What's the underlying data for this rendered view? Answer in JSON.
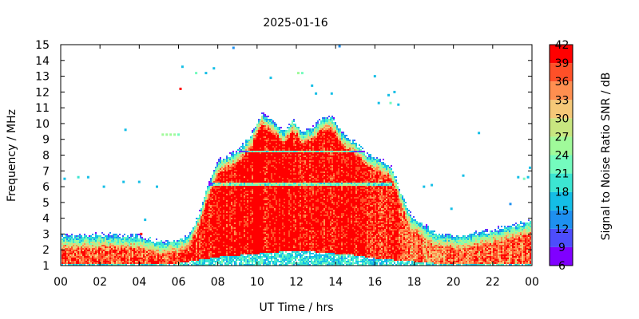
{
  "chart_data": {
    "type": "heatmap",
    "title": "2025-01-16",
    "xlabel": "UT Time / hrs",
    "ylabel": "Frequency / MHz",
    "xlim": [
      0,
      24
    ],
    "ylim": [
      1,
      15
    ],
    "x_tick_labels": [
      "00",
      "02",
      "04",
      "06",
      "08",
      "10",
      "12",
      "14",
      "16",
      "18",
      "20",
      "22",
      "00"
    ],
    "y_tick_labels": [
      "1",
      "2",
      "3",
      "4",
      "5",
      "6",
      "7",
      "8",
      "9",
      "10",
      "11",
      "12",
      "13",
      "14",
      "15"
    ],
    "colorbar": {
      "label": "Signal to Noise Ratio SNR / dB",
      "tick_labels": [
        "6",
        "9",
        "12",
        "15",
        "18",
        "21",
        "24",
        "27",
        "30",
        "33",
        "36",
        "39",
        "42"
      ],
      "range": [
        6,
        42
      ],
      "levels": [
        {
          "from": 6,
          "to": 9,
          "color": "#8000ff"
        },
        {
          "from": 9,
          "to": 12,
          "color": "#4d4dfc"
        },
        {
          "from": 12,
          "to": 15,
          "color": "#1e90f0"
        },
        {
          "from": 15,
          "to": 18,
          "color": "#14bee6"
        },
        {
          "from": 18,
          "to": 21,
          "color": "#3ce6d2"
        },
        {
          "from": 21,
          "to": 24,
          "color": "#74fbbe"
        },
        {
          "from": 24,
          "to": 27,
          "color": "#a0fa9a"
        },
        {
          "from": 27,
          "to": 30,
          "color": "#c8e680"
        },
        {
          "from": 30,
          "to": 33,
          "color": "#f5c878"
        },
        {
          "from": 33,
          "to": 36,
          "color": "#ff8f50"
        },
        {
          "from": 36,
          "to": 39,
          "color": "#ff5028"
        },
        {
          "from": 39,
          "to": 42,
          "color": "#ff0000"
        }
      ]
    },
    "upper_edge_mhz": {
      "hours": [
        0,
        2,
        4,
        5,
        6,
        6.5,
        7,
        7.5,
        8,
        9,
        9.7,
        10.2,
        10.8,
        11.3,
        11.8,
        12.3,
        12.8,
        13.3,
        13.8,
        14.3,
        15,
        15.6,
        16.2,
        16.8,
        17.3,
        17.8,
        18.5,
        19,
        20,
        22,
        24
      ],
      "values": [
        2.9,
        3.0,
        2.9,
        2.6,
        2.7,
        3.0,
        4.3,
        6.3,
        7.7,
        8.3,
        9.4,
        10.7,
        10.2,
        9.5,
        10.3,
        9.5,
        9.8,
        10.4,
        10.5,
        9.4,
        8.8,
        8.1,
        7.8,
        7.3,
        5.7,
        4.2,
        3.6,
        3.2,
        2.9,
        3.3,
        3.9
      ]
    },
    "lower_edge_mhz": {
      "hours": [
        0,
        6,
        7,
        8,
        9,
        10,
        11,
        12,
        13,
        14,
        15,
        16,
        17,
        18,
        19,
        24
      ],
      "values": [
        1.2,
        1.2,
        1.4,
        1.6,
        1.7,
        1.8,
        1.9,
        2.0,
        1.9,
        1.8,
        1.7,
        1.5,
        1.4,
        1.3,
        1.2,
        1.2
      ]
    },
    "peak_snr_db": {
      "hours": [
        0,
        5.5,
        7.5,
        9,
        12,
        15,
        17,
        18,
        24
      ],
      "values": [
        38,
        37,
        41,
        42,
        42,
        41,
        39,
        36,
        37
      ]
    },
    "isolated_points": [
      {
        "hour": 0.2,
        "mhz": 6.5,
        "snr": 15
      },
      {
        "hour": 0.9,
        "mhz": 6.6,
        "snr": 18
      },
      {
        "hour": 1.4,
        "mhz": 6.6,
        "snr": 15
      },
      {
        "hour": 2.2,
        "mhz": 6.0,
        "snr": 15
      },
      {
        "hour": 3.3,
        "mhz": 9.6,
        "snr": 15
      },
      {
        "hour": 3.2,
        "mhz": 6.3,
        "snr": 15
      },
      {
        "hour": 4.0,
        "mhz": 6.3,
        "snr": 15
      },
      {
        "hour": 4.3,
        "mhz": 3.9,
        "snr": 15
      },
      {
        "hour": 4.1,
        "mhz": 3.0,
        "snr": 39
      },
      {
        "hour": 4.9,
        "mhz": 6.0,
        "snr": 15
      },
      {
        "hour": 5.2,
        "mhz": 9.3,
        "snr": 24
      },
      {
        "hour": 5.4,
        "mhz": 9.3,
        "snr": 24
      },
      {
        "hour": 5.6,
        "mhz": 9.3,
        "snr": 24
      },
      {
        "hour": 5.8,
        "mhz": 9.3,
        "snr": 24
      },
      {
        "hour": 6.0,
        "mhz": 9.3,
        "snr": 21
      },
      {
        "hour": 6.1,
        "mhz": 12.2,
        "snr": 39
      },
      {
        "hour": 6.2,
        "mhz": 13.6,
        "snr": 15
      },
      {
        "hour": 6.9,
        "mhz": 13.2,
        "snr": 21
      },
      {
        "hour": 7.4,
        "mhz": 13.2,
        "snr": 15
      },
      {
        "hour": 7.8,
        "mhz": 13.5,
        "snr": 15
      },
      {
        "hour": 8.8,
        "mhz": 14.8,
        "snr": 12
      },
      {
        "hour": 10.7,
        "mhz": 12.9,
        "snr": 15
      },
      {
        "hour": 12.1,
        "mhz": 13.2,
        "snr": 24
      },
      {
        "hour": 12.3,
        "mhz": 13.2,
        "snr": 21
      },
      {
        "hour": 12.8,
        "mhz": 12.4,
        "snr": 15
      },
      {
        "hour": 13.0,
        "mhz": 11.9,
        "snr": 15
      },
      {
        "hour": 13.8,
        "mhz": 11.9,
        "snr": 15
      },
      {
        "hour": 14.2,
        "mhz": 14.9,
        "snr": 12
      },
      {
        "hour": 16.0,
        "mhz": 13.0,
        "snr": 15
      },
      {
        "hour": 16.2,
        "mhz": 11.3,
        "snr": 15
      },
      {
        "hour": 16.7,
        "mhz": 11.8,
        "snr": 15
      },
      {
        "hour": 16.8,
        "mhz": 11.3,
        "snr": 21
      },
      {
        "hour": 17.0,
        "mhz": 12.0,
        "snr": 15
      },
      {
        "hour": 17.2,
        "mhz": 11.2,
        "snr": 15
      },
      {
        "hour": 18.5,
        "mhz": 6.0,
        "snr": 15
      },
      {
        "hour": 18.9,
        "mhz": 6.1,
        "snr": 15
      },
      {
        "hour": 19.9,
        "mhz": 4.6,
        "snr": 15
      },
      {
        "hour": 20.5,
        "mhz": 6.7,
        "snr": 15
      },
      {
        "hour": 21.3,
        "mhz": 9.4,
        "snr": 15
      },
      {
        "hour": 22.9,
        "mhz": 4.9,
        "snr": 12
      },
      {
        "hour": 23.3,
        "mhz": 6.6,
        "snr": 15
      },
      {
        "hour": 23.6,
        "mhz": 6.5,
        "snr": 21
      },
      {
        "hour": 23.8,
        "mhz": 6.6,
        "snr": 15
      },
      {
        "hour": 23.9,
        "mhz": 7.2,
        "snr": 15
      }
    ],
    "grid": false,
    "legend": "colorbar-right"
  }
}
